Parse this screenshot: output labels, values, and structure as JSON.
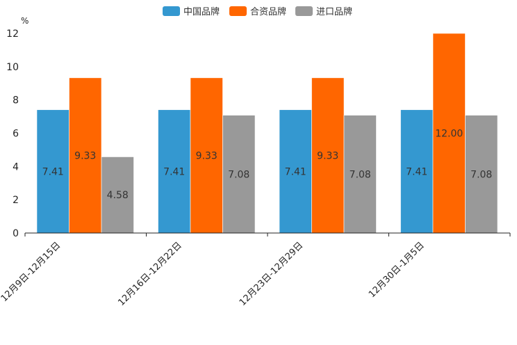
{
  "chart_data": {
    "type": "bar",
    "title": "",
    "xlabel": "",
    "ylabel": "%",
    "ylim": [
      0,
      12
    ],
    "yticks": [
      0,
      2,
      4,
      6,
      8,
      10,
      12
    ],
    "grid": false,
    "legend_position": "top-center",
    "categories": [
      "12月9日-12月15日",
      "12月16日-12月22日",
      "12月23日-12月29日",
      "12月30日-1月5日"
    ],
    "series": [
      {
        "name": "中国品牌",
        "color": "#3498d0",
        "values": [
          7.41,
          7.41,
          7.41,
          7.41
        ],
        "labels": [
          "7.41",
          "7.41",
          "7.41",
          "7.41"
        ]
      },
      {
        "name": "合资品牌",
        "color": "#ff6600",
        "values": [
          9.33,
          9.33,
          9.33,
          12.0
        ],
        "labels": [
          "9.33",
          "9.33",
          "9.33",
          "12.00"
        ]
      },
      {
        "name": "进口品牌",
        "color": "#999999",
        "values": [
          4.58,
          7.08,
          7.08,
          7.08
        ],
        "labels": [
          "4.58",
          "7.08",
          "7.08",
          "7.08"
        ]
      }
    ]
  }
}
